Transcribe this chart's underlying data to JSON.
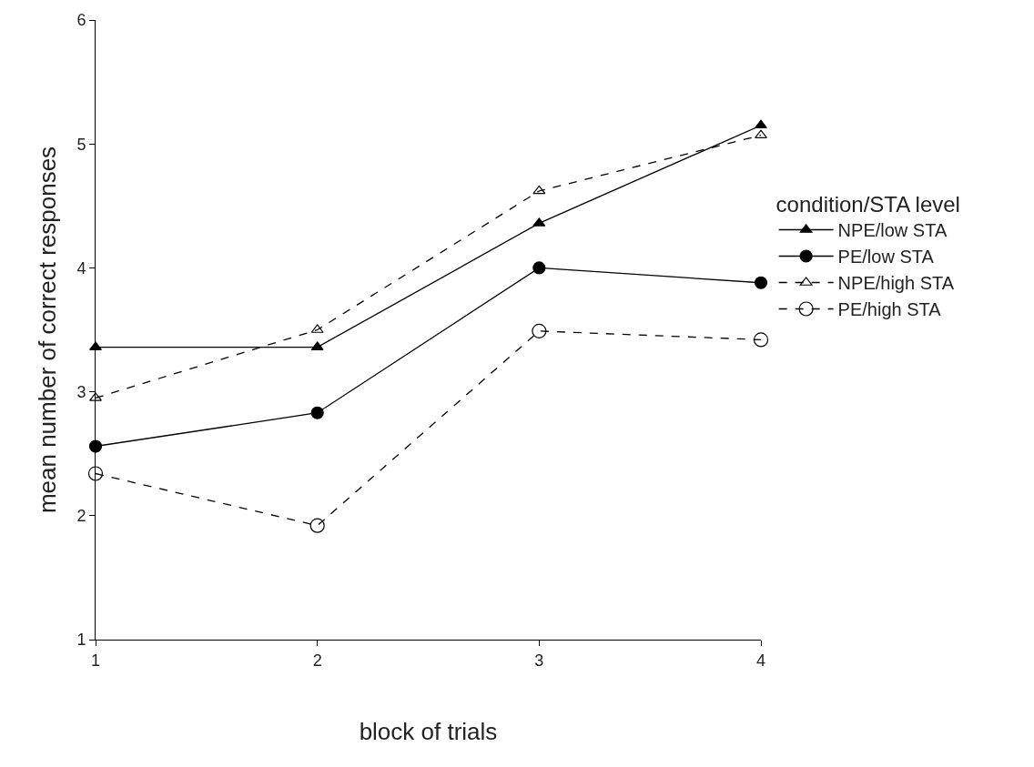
{
  "chart_data": {
    "type": "line",
    "xlabel": "block of trials",
    "ylabel": "mean number of correct responses",
    "legend_title": "condition/STA level",
    "x": [
      1,
      2,
      3,
      4
    ],
    "xlim": [
      1,
      4
    ],
    "xticks": [
      1,
      2,
      3,
      4
    ],
    "ylim": [
      1,
      6
    ],
    "yticks": [
      1,
      2,
      3,
      4,
      5,
      6
    ],
    "grid": false,
    "legend": "right",
    "series": [
      {
        "name": "NPE/low STA",
        "color": "#000000",
        "marker": "triangle",
        "line_style": "solid",
        "values": [
          3.36,
          3.36,
          4.36,
          5.15
        ]
      },
      {
        "name": "PE/low STA",
        "color": "#000000",
        "marker": "circle",
        "line_style": "solid",
        "values": [
          2.56,
          2.83,
          4.0,
          3.88
        ]
      },
      {
        "name": "NPE/high STA",
        "color": "#000000",
        "marker": "triangle-open",
        "line_style": "dashed",
        "values": [
          2.95,
          3.5,
          4.62,
          5.07
        ]
      },
      {
        "name": "PE/high STA",
        "color": "#000000",
        "marker": "circle-open",
        "line_style": "dashed",
        "values": [
          2.34,
          1.92,
          3.49,
          3.42
        ]
      }
    ]
  }
}
